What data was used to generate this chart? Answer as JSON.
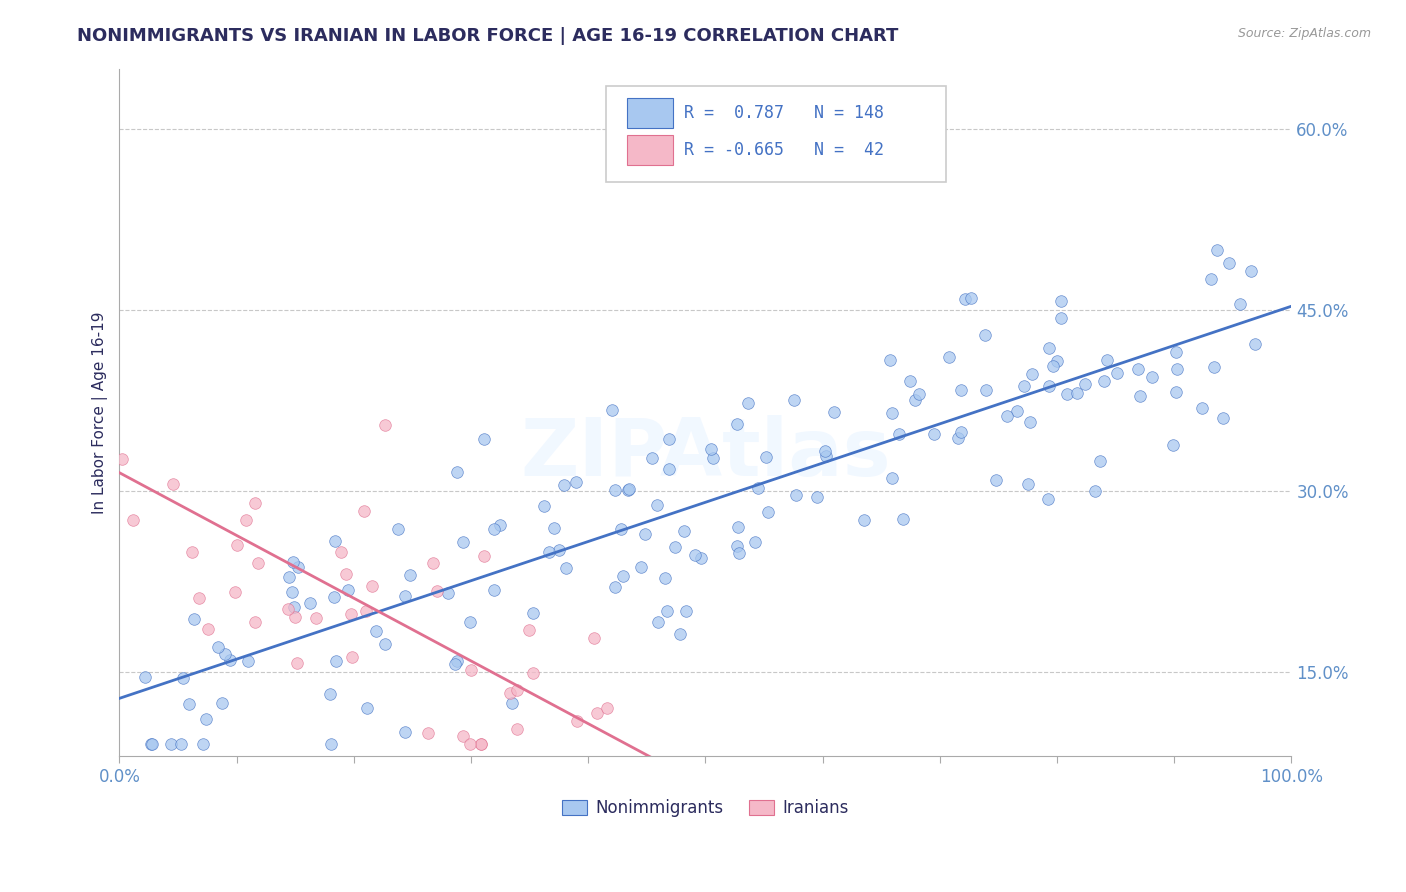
{
  "title": "NONIMMIGRANTS VS IRANIAN IN LABOR FORCE | AGE 16-19 CORRELATION CHART",
  "source": "Source: ZipAtlas.com",
  "ylabel": "In Labor Force | Age 16-19",
  "xlim": [
    0.0,
    1.0
  ],
  "ylim": [
    0.08,
    0.65
  ],
  "yticks": [
    0.15,
    0.3,
    0.45,
    0.6
  ],
  "yticklabels": [
    "15.0%",
    "30.0%",
    "45.0%",
    "60.0%"
  ],
  "blue_R": 0.787,
  "blue_N": 148,
  "pink_R": -0.665,
  "pink_N": 42,
  "blue_color": "#A8C8F0",
  "pink_color": "#F5B8C8",
  "blue_line_color": "#4472C4",
  "pink_line_color": "#E07090",
  "grid_color": "#C8C8C8",
  "bg_color": "#FFFFFF",
  "watermark": "ZIPAtlas",
  "legend_color": "#4472C4",
  "title_color": "#2C2C5E",
  "axis_label_color": "#2C2C5E",
  "tick_color": "#6090C8",
  "blue_intercept": 0.128,
  "blue_slope": 0.325,
  "pink_intercept": 0.315,
  "pink_slope": -0.52
}
